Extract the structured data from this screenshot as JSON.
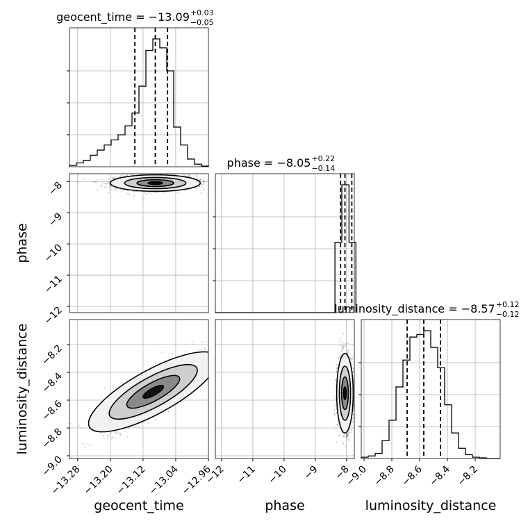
{
  "chart_data": {
    "type": "corner",
    "parameters": [
      "geocent_time",
      "phase",
      "luminosity_distance"
    ],
    "x_axis_labels": [
      "geocent_time",
      "phase",
      "luminosity_distance"
    ],
    "y_axis_labels": [
      "phase",
      "luminosity_distance"
    ],
    "titles": [
      {
        "prefix": "geocent_time = −13.09",
        "sup": "+0.03",
        "sub": "−0.05"
      },
      {
        "prefix": "phase = −8.05",
        "sup": "+0.22",
        "sub": "−0.14"
      },
      {
        "prefix": "luminosity_distance = −8.57",
        "sup": "+0.12",
        "sub": "−0.12"
      }
    ],
    "ranges": {
      "geocent_time": [
        -13.3,
        -12.96
      ],
      "phase": [
        -12.2,
        -7.75
      ],
      "luminosity_distance": [
        -9.02,
        -8.02
      ]
    },
    "ticks": {
      "geocent_time": {
        "values": [
          -13.28,
          -13.2,
          -13.12,
          -13.04,
          -12.96
        ],
        "labels": [
          "−13.28",
          "−13.20",
          "−13.12",
          "−13.04",
          "−12.96"
        ]
      },
      "phase": {
        "values": [
          -12,
          -11,
          -10,
          -9,
          -8
        ],
        "labels": [
          "−12",
          "−11",
          "−10",
          "−9",
          "−8"
        ]
      },
      "luminosity_distance": {
        "values": [
          -9.0,
          -8.8,
          -8.6,
          -8.4,
          -8.2
        ],
        "labels": [
          "−9.0",
          "−8.8",
          "−8.6",
          "−8.4",
          "−8.2"
        ]
      }
    },
    "quantiles": {
      "geocent_time": [
        -13.14,
        -13.09,
        -13.06
      ],
      "phase": [
        -8.19,
        -8.05,
        -7.83
      ],
      "luminosity_distance": [
        -8.69,
        -8.57,
        -8.45
      ]
    },
    "histograms": {
      "geocent_time": {
        "edges": [
          -13.3,
          -13.283,
          -13.266,
          -13.249,
          -13.232,
          -13.215,
          -13.198,
          -13.181,
          -13.164,
          -13.147,
          -13.13,
          -13.113,
          -13.096,
          -13.079,
          -13.062,
          -13.045,
          -13.028,
          -13.011,
          -12.994,
          -12.977,
          -12.96
        ],
        "counts": [
          0.01,
          0.03,
          0.05,
          0.09,
          0.13,
          0.17,
          0.21,
          0.25,
          0.32,
          0.42,
          0.63,
          0.91,
          1.0,
          0.93,
          0.75,
          0.31,
          0.17,
          0.06,
          0.02,
          0.005
        ]
      },
      "phase": {
        "edges": [
          -12.2,
          -11.97,
          -11.75,
          -11.52,
          -11.3,
          -11.07,
          -10.85,
          -10.62,
          -10.4,
          -10.17,
          -9.95,
          -9.72,
          -9.5,
          -9.27,
          -9.05,
          -8.82,
          -8.6,
          -8.37,
          -8.15,
          -7.92,
          -7.7
        ],
        "counts": [
          0,
          0,
          0,
          0,
          0,
          0,
          0,
          0,
          0,
          0,
          0,
          0,
          0,
          0,
          0,
          0,
          0,
          0.55,
          1.0,
          0.55
        ]
      },
      "luminosity_distance": {
        "edges": [
          -9.02,
          -8.97,
          -8.92,
          -8.87,
          -8.82,
          -8.77,
          -8.72,
          -8.67,
          -8.62,
          -8.57,
          -8.52,
          -8.47,
          -8.42,
          -8.37,
          -8.32,
          -8.27,
          -8.22,
          -8.17,
          -8.12,
          -8.07,
          -8.02
        ],
        "counts": [
          0.01,
          0.02,
          0.04,
          0.14,
          0.3,
          0.56,
          0.77,
          0.95,
          0.97,
          1.0,
          0.87,
          0.71,
          0.42,
          0.2,
          0.08,
          0.03,
          0.01,
          0.005,
          0,
          0
        ]
      }
    },
    "scatter_2d": [
      {
        "x": "geocent_time",
        "y": "phase",
        "center": [
          -13.09,
          -8.05
        ],
        "spread": [
          0.05,
          0.12
        ],
        "corr": 0.0
      },
      {
        "x": "geocent_time",
        "y": "luminosity_distance",
        "center": [
          -13.095,
          -8.54
        ],
        "spread": [
          0.06,
          0.13
        ],
        "corr": 0.85
      },
      {
        "x": "phase",
        "y": "luminosity_distance",
        "center": [
          -8.05,
          -8.55
        ],
        "spread": [
          0.12,
          0.13
        ],
        "corr": 0.0
      }
    ],
    "grid": true,
    "colors": {
      "line": "#000000",
      "grid": "#b0b0b0",
      "points": "#000000"
    }
  }
}
